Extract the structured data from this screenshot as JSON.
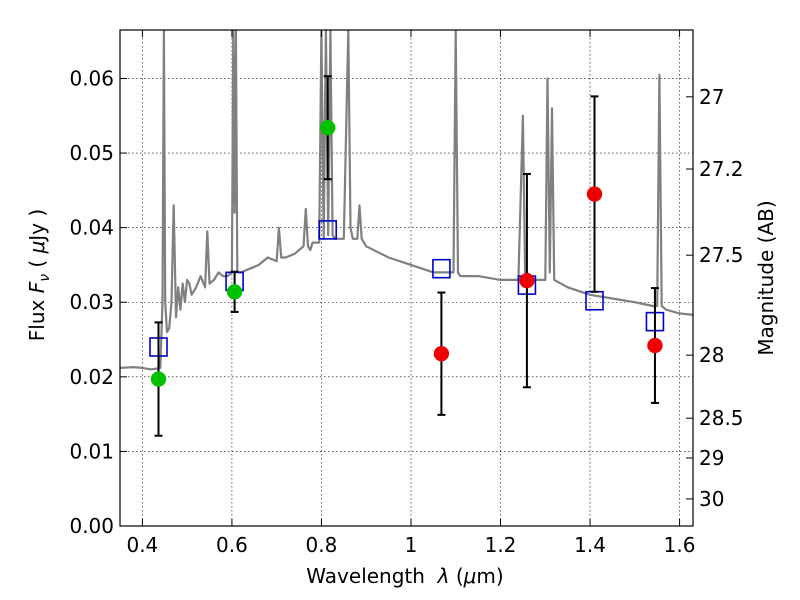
{
  "chart_data": {
    "type": "scatter",
    "xlabel": "Wavelength  λ (μm)",
    "ylabel": "Flux  F_ν  ( μJy )",
    "ylabel_parts": {
      "prefix": "Flux ",
      "var": "F",
      "sub": "ν",
      "open": " ( ",
      "mu": "μ",
      "unit": "Jy )"
    },
    "xlabel_parts": {
      "prefix": "Wavelength  ",
      "var": "λ",
      "open": " (",
      "mu": "μ",
      "unit": "m)"
    },
    "y2label": "Magnitude (AB)",
    "xlim": [
      0.35,
      1.63
    ],
    "ylim": [
      0.0,
      0.0665
    ],
    "grid": true,
    "x_ticks": [
      0.4,
      0.6,
      0.8,
      1.0,
      1.2,
      1.4,
      1.6
    ],
    "x_tick_labels": [
      "0.4",
      "0.6",
      "0.8",
      "1",
      "1.2",
      "1.4",
      "1.6"
    ],
    "y_ticks": [
      0.0,
      0.01,
      0.02,
      0.03,
      0.04,
      0.05,
      0.06
    ],
    "y_tick_labels": [
      "0.00",
      "0.01",
      "0.02",
      "0.03",
      "0.04",
      "0.05",
      "0.06"
    ],
    "y2_ticks": [
      {
        "label": "27",
        "mag": 27.0
      },
      {
        "label": "27.2",
        "mag": 27.2
      },
      {
        "label": "27.5",
        "mag": 27.5
      },
      {
        "label": "28",
        "mag": 28.0
      },
      {
        "label": "28.5",
        "mag": 28.5
      },
      {
        "label": "29",
        "mag": 29.0
      },
      {
        "label": "30",
        "mag": 30.0
      }
    ],
    "series": [
      {
        "kind": "detections",
        "color": "#00c000",
        "marker": "circle",
        "x": [
          0.436,
          0.606,
          0.814
        ],
        "y": [
          0.0197,
          0.0314,
          0.0534
        ],
        "yerr": [
          0.0076,
          0.0027,
          0.0069
        ]
      },
      {
        "kind": "detections",
        "color": "#ee0000",
        "marker": "circle",
        "x": [
          1.068,
          1.259,
          1.41,
          1.545
        ],
        "y": [
          0.0231,
          0.0329,
          0.0445,
          0.0242
        ],
        "yerr": [
          0.0082,
          0.0143,
          0.0131,
          0.0077
        ]
      },
      {
        "kind": "model photometry",
        "color": "#0000cc",
        "marker": "square",
        "x": [
          0.436,
          0.606,
          0.814,
          1.068,
          1.259,
          1.41,
          1.545
        ],
        "y": [
          0.024,
          0.0328,
          0.0397,
          0.0345,
          0.0323,
          0.0302,
          0.0274
        ]
      },
      {
        "kind": "model spectrum",
        "color": "#808080",
        "line": true,
        "x": [
          0.35,
          0.38,
          0.4,
          0.42,
          0.44,
          0.445,
          0.448,
          0.451,
          0.455,
          0.46,
          0.465,
          0.47,
          0.475,
          0.48,
          0.485,
          0.49,
          0.495,
          0.5,
          0.505,
          0.51,
          0.52,
          0.53,
          0.54,
          0.545,
          0.55,
          0.56,
          0.57,
          0.58,
          0.59,
          0.6,
          0.603,
          0.606,
          0.609,
          0.612,
          0.62,
          0.64,
          0.66,
          0.68,
          0.7,
          0.705,
          0.71,
          0.715,
          0.72,
          0.74,
          0.76,
          0.765,
          0.77,
          0.775,
          0.78,
          0.795,
          0.8,
          0.805,
          0.81,
          0.815,
          0.82,
          0.825,
          0.83,
          0.84,
          0.85,
          0.86,
          0.865,
          0.87,
          0.88,
          0.885,
          0.89,
          0.895,
          0.9,
          0.95,
          1.0,
          1.05,
          1.08,
          1.095,
          1.1,
          1.105,
          1.11,
          1.15,
          1.2,
          1.24,
          1.25,
          1.255,
          1.26,
          1.27,
          1.28,
          1.3,
          1.305,
          1.31,
          1.315,
          1.32,
          1.35,
          1.4,
          1.45,
          1.5,
          1.54,
          1.55,
          1.555,
          1.56,
          1.57,
          1.6,
          1.63
        ],
        "y": [
          0.0212,
          0.0213,
          0.0212,
          0.021,
          0.0212,
          0.03,
          0.0665,
          0.03,
          0.026,
          0.0265,
          0.03,
          0.043,
          0.028,
          0.032,
          0.029,
          0.0325,
          0.03,
          0.033,
          0.0325,
          0.031,
          0.032,
          0.0335,
          0.032,
          0.0395,
          0.0325,
          0.033,
          0.034,
          0.0335,
          0.0335,
          0.034,
          0.0665,
          0.042,
          0.0665,
          0.034,
          0.034,
          0.0345,
          0.035,
          0.036,
          0.0355,
          0.04,
          0.036,
          0.036,
          0.036,
          0.0365,
          0.0375,
          0.0425,
          0.0375,
          0.037,
          0.038,
          0.038,
          0.0665,
          0.0385,
          0.0665,
          0.039,
          0.0665,
          0.039,
          0.0385,
          0.0385,
          0.0385,
          0.0665,
          0.04,
          0.0385,
          0.0385,
          0.043,
          0.0385,
          0.038,
          0.0375,
          0.036,
          0.035,
          0.034,
          0.034,
          0.034,
          0.0665,
          0.034,
          0.0335,
          0.0335,
          0.033,
          0.033,
          0.055,
          0.034,
          0.033,
          0.033,
          0.033,
          0.033,
          0.06,
          0.034,
          0.056,
          0.033,
          0.032,
          0.031,
          0.0305,
          0.03,
          0.0295,
          0.0295,
          0.0605,
          0.0295,
          0.029,
          0.0285,
          0.0283
        ]
      }
    ]
  }
}
